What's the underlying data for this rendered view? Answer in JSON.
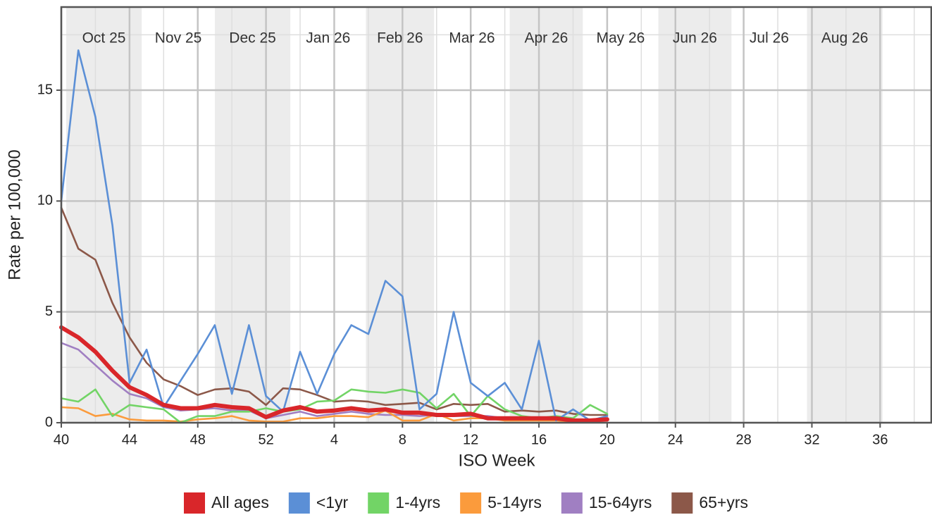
{
  "chart_data": {
    "type": "line",
    "x_label": "ISO Week",
    "y_label": "Rate per 100,000",
    "categories": [
      "40",
      null,
      null,
      null,
      "44",
      null,
      null,
      null,
      "48",
      null,
      null,
      null,
      "52",
      null,
      null,
      null,
      "4",
      null,
      null,
      null,
      "8",
      null,
      null,
      null,
      "12",
      null,
      null,
      null,
      "16",
      null,
      null,
      null,
      "20",
      null,
      null,
      null,
      "24",
      null,
      null,
      null,
      "28",
      null,
      null,
      null,
      "32",
      null,
      null,
      null,
      "36",
      null,
      null,
      null
    ],
    "months": [
      "Oct 25",
      "Nov 25",
      "Dec 25",
      "Jan 26",
      "Feb 26",
      "Mar 26",
      "Apr 26",
      "May 26",
      "Jun 26",
      "Jul 26",
      "Aug 26"
    ],
    "series": [
      {
        "name": "All ages",
        "color": "#d9262a",
        "values": [
          4.3,
          3.85,
          3.2,
          2.35,
          1.6,
          1.25,
          0.8,
          0.65,
          0.65,
          0.8,
          0.7,
          0.65,
          0.25,
          0.55,
          0.7,
          0.5,
          0.55,
          0.65,
          0.55,
          0.6,
          0.45,
          0.45,
          0.35,
          0.35,
          0.4,
          0.2,
          0.2,
          0.2,
          0.2,
          0.2,
          0.1,
          0.1,
          0.15,
          null,
          null,
          null,
          null,
          null,
          null,
          null,
          null,
          null,
          null,
          null,
          null,
          null,
          null,
          null,
          null,
          null,
          null,
          null
        ]
      },
      {
        "name": "<1yr",
        "color": "#5b8fd6",
        "values": [
          10,
          16.8,
          13.8,
          8.9,
          1.8,
          3.3,
          0.7,
          1.9,
          3.1,
          4.4,
          1.3,
          4.4,
          1.2,
          0.5,
          3.2,
          1.3,
          3.1,
          4.4,
          4.0,
          6.4,
          5.7,
          0.6,
          1.3,
          5.0,
          1.8,
          1.2,
          1.8,
          0.6,
          3.7,
          0.1,
          0.6,
          0.1,
          0.3,
          null,
          null,
          null,
          null,
          null,
          null,
          null,
          null,
          null,
          null,
          null,
          null,
          null,
          null,
          null,
          null,
          null,
          null,
          null
        ]
      },
      {
        "name": "1-4yrs",
        "color": "#72d466",
        "values": [
          1.1,
          0.95,
          1.5,
          0.3,
          0.8,
          0.7,
          0.6,
          0.0,
          0.3,
          0.3,
          0.5,
          0.5,
          0.65,
          0.5,
          0.6,
          0.95,
          1.0,
          1.5,
          1.4,
          1.35,
          1.5,
          1.35,
          0.65,
          1.3,
          0.3,
          1.2,
          0.6,
          0.3,
          0.2,
          0.3,
          0.2,
          0.8,
          0.4,
          null,
          null,
          null,
          null,
          null,
          null,
          null,
          null,
          null,
          null,
          null,
          null,
          null,
          null,
          null,
          null,
          null,
          null,
          null
        ]
      },
      {
        "name": "5-14yrs",
        "color": "#fb9b3c",
        "values": [
          0.7,
          0.65,
          0.3,
          0.4,
          0.15,
          0.1,
          0.1,
          0.05,
          0.15,
          0.2,
          0.3,
          0.1,
          0.05,
          0.05,
          0.2,
          0.2,
          0.3,
          0.3,
          0.25,
          0.55,
          0.1,
          0.1,
          0.4,
          0.1,
          0.2,
          0.2,
          0.1,
          0.1,
          0.1,
          0.1,
          0.05,
          0.05,
          0.1,
          null,
          null,
          null,
          null,
          null,
          null,
          null,
          null,
          null,
          null,
          null,
          null,
          null,
          null,
          null,
          null,
          null,
          null,
          null
        ]
      },
      {
        "name": "15-64yrs",
        "color": "#a07fc2",
        "values": [
          3.6,
          3.3,
          2.6,
          1.9,
          1.3,
          1.1,
          0.7,
          0.55,
          0.6,
          0.65,
          0.55,
          0.55,
          0.2,
          0.35,
          0.5,
          0.3,
          0.4,
          0.5,
          0.4,
          0.35,
          0.35,
          0.3,
          0.35,
          0.3,
          0.3,
          0.3,
          0.2,
          0.2,
          0.15,
          0.15,
          0.15,
          0.15,
          0.15,
          null,
          null,
          null,
          null,
          null,
          null,
          null,
          null,
          null,
          null,
          null,
          null,
          null,
          null,
          null,
          null,
          null,
          null,
          null
        ]
      },
      {
        "name": "65+yrs",
        "color": "#8c5849",
        "values": [
          9.7,
          7.85,
          7.35,
          5.4,
          3.85,
          2.7,
          1.95,
          1.65,
          1.25,
          1.5,
          1.55,
          1.4,
          0.8,
          1.55,
          1.5,
          1.25,
          0.95,
          1.0,
          0.95,
          0.8,
          0.85,
          0.9,
          0.6,
          0.85,
          0.8,
          0.85,
          0.5,
          0.55,
          0.5,
          0.55,
          0.4,
          0.35,
          0.35,
          null,
          null,
          null,
          null,
          null,
          null,
          null,
          null,
          null,
          null,
          null,
          null,
          null,
          null,
          null,
          null,
          null,
          null,
          null
        ]
      }
    ],
    "ylim": [
      0,
      18.75
    ],
    "yticks": [
      0,
      5,
      10,
      15
    ],
    "grid": true,
    "legend": "bottom"
  }
}
